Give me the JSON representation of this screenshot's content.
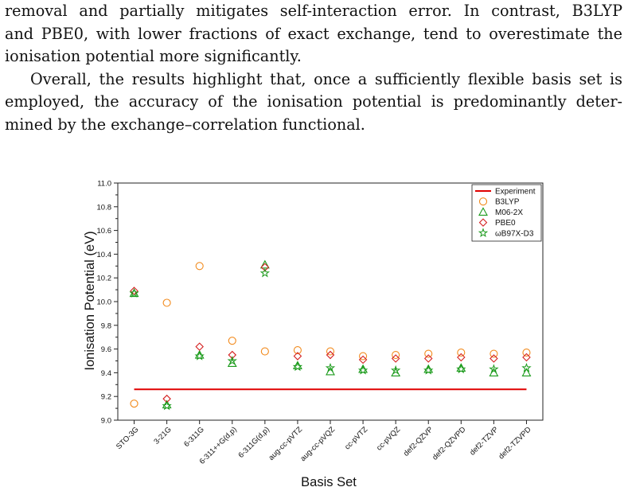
{
  "paper": {
    "paragraph1_lines": [
      "removal and partially mitigates self-interaction error.  In contrast, B3LYP",
      "and PBE0, with lower fractions of exact exchange, tend to overestimate the",
      "ionisation potential more significantly."
    ],
    "paragraph2_lines": [
      "Overall, the results highlight that, once a sufficiently flexible basis set is",
      "employed, the accuracy of the ionisation potential is predominantly deter-",
      "mined by the exchange–correlation functional."
    ]
  },
  "chart_data": {
    "type": "scatter",
    "xlabel": "Basis Set",
    "ylabel": "Ionisation Potential (eV)",
    "categories": [
      "STO-3G",
      "3-21G",
      "6-311G",
      "6-311++G(d,p)",
      "6-311G(d,p)",
      "aug-cc-pVTZ",
      "aug-cc-pVQZ",
      "cc-pVTZ",
      "cc-pVQZ",
      "def2-QZVP",
      "def2-QZVPD",
      "def2-TZVP",
      "def2-TZVPD"
    ],
    "ylim": [
      9.0,
      11.0
    ],
    "yticks": [
      "9.0",
      "9.2",
      "9.4",
      "9.6",
      "9.8",
      "10.0",
      "10.2",
      "10.4",
      "10.6",
      "10.8",
      "11.0"
    ],
    "legend_position": "top-right",
    "reference_line": {
      "name": "Experiment",
      "value": 9.26,
      "color": "#e00000"
    },
    "series": [
      {
        "name": "B3LYP",
        "marker": "circle",
        "color": "#f28a1c",
        "values": [
          9.14,
          9.99,
          10.3,
          9.67,
          9.58,
          9.59,
          9.58,
          9.54,
          9.55,
          9.56,
          9.57,
          9.56,
          9.57
        ]
      },
      {
        "name": "M06-2X",
        "marker": "triangle",
        "color": "#1a9a1a",
        "values": [
          10.07,
          9.13,
          9.55,
          9.48,
          10.31,
          9.46,
          9.41,
          9.43,
          9.4,
          9.43,
          9.44,
          9.4,
          9.4
        ]
      },
      {
        "name": "PBE0",
        "marker": "diamond",
        "color": "#d42020",
        "values": [
          10.09,
          9.18,
          9.62,
          9.55,
          10.29,
          9.54,
          9.55,
          9.51,
          9.52,
          9.52,
          9.53,
          9.52,
          9.53
        ]
      },
      {
        "name": "ωB97X-D3",
        "marker": "star",
        "color": "#1a9a1a",
        "values": [
          10.07,
          9.12,
          9.54,
          9.5,
          10.24,
          9.45,
          9.44,
          9.42,
          9.42,
          9.42,
          9.43,
          9.43,
          9.44
        ]
      }
    ]
  }
}
